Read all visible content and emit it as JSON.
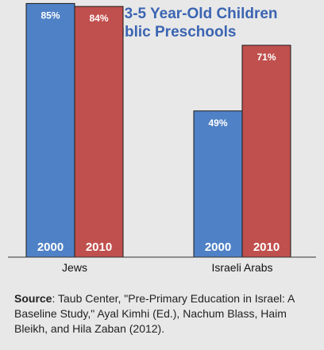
{
  "chart_data": {
    "type": "bar",
    "title_lines": [
      "Percent of 3-5 Year-Old Children",
      "in Public Preschools"
    ],
    "categories": [
      "Jews",
      "Israeli Arabs"
    ],
    "series": [
      {
        "name": "2000",
        "values": [
          85,
          49
        ],
        "value_labels": [
          "85%",
          "49%"
        ],
        "color": "#4f81c6"
      },
      {
        "name": "2010",
        "values": [
          84,
          71
        ],
        "value_labels": [
          "84%",
          "71%"
        ],
        "color": "#c0504d"
      }
    ],
    "ylim": [
      0,
      100
    ],
    "grid": false,
    "legend": "none"
  },
  "source": {
    "label": "Source",
    "text": ": Taub Center, \"Pre-Primary Education in Israel: A Baseline Study,\" Ayal Kimhi (Ed.), Nachum Blass, Haim Bleikh, and Hila Zaban (2012)."
  }
}
